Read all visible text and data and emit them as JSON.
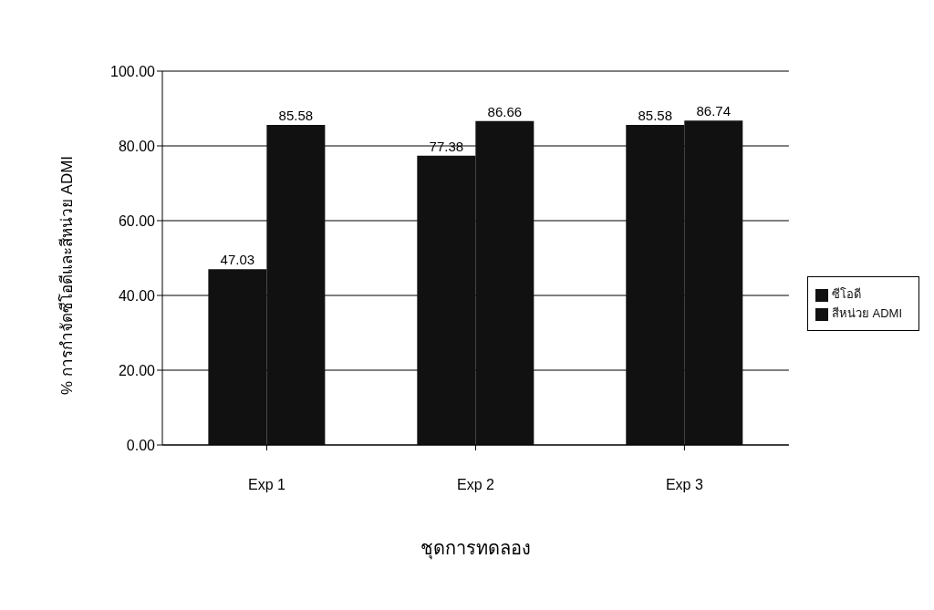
{
  "chart_data": {
    "type": "bar",
    "xlabel": "ชุดการทดลอง",
    "ylabel": "% การกำจัดซีโอดีและสีหน่วย ADMI",
    "categories": [
      "Exp 1",
      "Exp 2",
      "Exp 3"
    ],
    "series": [
      {
        "name": "สีหน่วย ADMI",
        "color": "#111111",
        "values": [
          47.03,
          77.38,
          85.58
        ]
      },
      {
        "name": "ซีโอดี",
        "color": "#111111",
        "values": [
          85.58,
          86.66,
          86.74
        ]
      }
    ],
    "ylim": [
      0,
      100
    ],
    "yticks": [
      {
        "value": 0,
        "label": "0.00"
      },
      {
        "value": 20,
        "label": "20.00"
      },
      {
        "value": 40,
        "label": "40.00"
      },
      {
        "value": 60,
        "label": "60.00"
      },
      {
        "value": 80,
        "label": "80.00"
      },
      {
        "value": 100,
        "label": "100.00"
      }
    ],
    "grid": "y",
    "legend": "right",
    "data_labels": true
  }
}
